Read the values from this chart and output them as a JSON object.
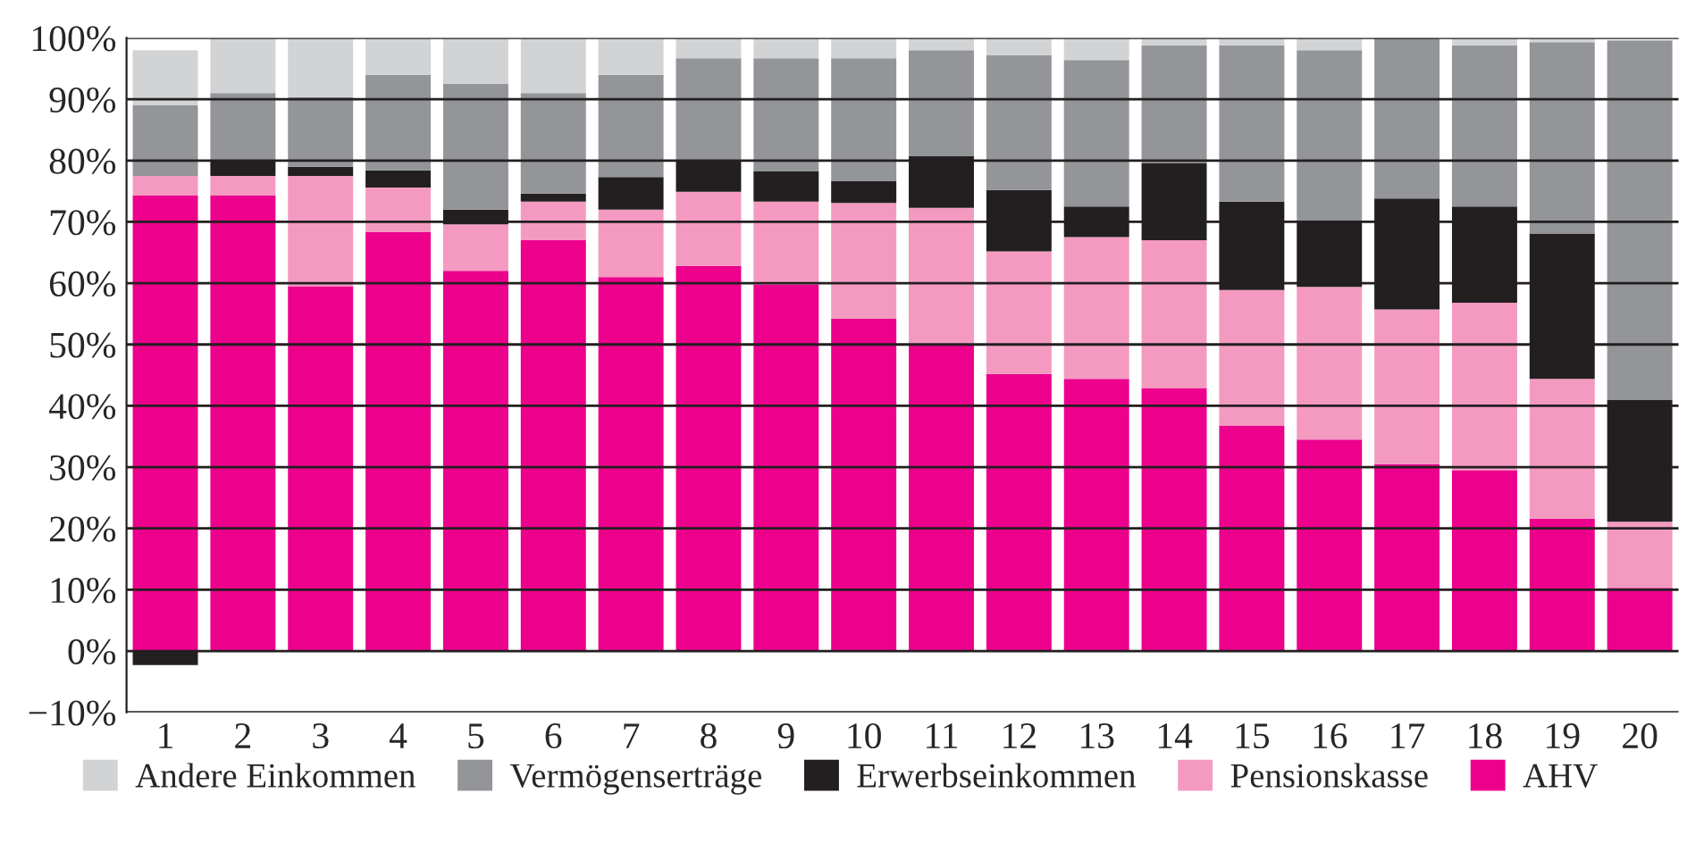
{
  "chart_data": {
    "type": "bar",
    "stacked": true,
    "categories": [
      "1",
      "2",
      "3",
      "4",
      "5",
      "6",
      "7",
      "8",
      "9",
      "10",
      "11",
      "12",
      "13",
      "14",
      "15",
      "16",
      "17",
      "18",
      "19",
      "20"
    ],
    "series": [
      {
        "name": "AHV",
        "color": "#ec008c",
        "values": [
          74.3,
          74.3,
          59.5,
          68.3,
          62,
          67,
          61,
          62.8,
          59.8,
          54.2,
          50.1,
          45.2,
          44.4,
          42.9,
          36.8,
          34.5,
          30.5,
          29.5,
          21.6,
          10.3
        ]
      },
      {
        "name": "Pensionskasse",
        "color": "#f49ac1",
        "values": [
          3.2,
          3.2,
          18,
          7.3,
          7.6,
          6.3,
          11,
          12.1,
          13.5,
          18.9,
          22.2,
          20,
          23.1,
          24.1,
          22.1,
          24.9,
          25.2,
          27.3,
          22.8,
          10.8
        ]
      },
      {
        "name": "Erwerbseinkommen",
        "color": "#231f20",
        "values": [
          -2.3,
          2.5,
          1.5,
          2.8,
          2.4,
          1.3,
          5.3,
          5.1,
          5,
          3.6,
          8.4,
          10,
          5,
          12.6,
          14.4,
          10.8,
          18.1,
          15.7,
          23.7,
          19.9
        ]
      },
      {
        "name": "Vermögenserträge",
        "color": "#939598",
        "values": [
          11.5,
          11,
          11.3,
          15.6,
          20.5,
          16.4,
          16.7,
          16.7,
          18.4,
          20,
          17.3,
          22,
          23.9,
          19.2,
          25.5,
          27.8,
          26.2,
          26.3,
          31.2,
          58.6
        ]
      },
      {
        "name": "Andere Einkommen",
        "color": "#d1d3d4",
        "values": [
          9,
          9,
          9.7,
          6,
          7.5,
          9,
          6,
          3.3,
          3.3,
          3.3,
          2,
          2.8,
          3.6,
          1.2,
          1.2,
          2,
          0,
          1.2,
          0.7,
          0
        ]
      }
    ],
    "ylim": [
      -10,
      100
    ],
    "yticks": [
      {
        "value": -10,
        "label": "−10%"
      },
      {
        "value": 0,
        "label": "0%"
      },
      {
        "value": 10,
        "label": "10%"
      },
      {
        "value": 20,
        "label": "20%"
      },
      {
        "value": 30,
        "label": "30%"
      },
      {
        "value": 40,
        "label": "40%"
      },
      {
        "value": 50,
        "label": "50%"
      },
      {
        "value": 60,
        "label": "60%"
      },
      {
        "value": 70,
        "label": "70%"
      },
      {
        "value": 80,
        "label": "80%"
      },
      {
        "value": 90,
        "label": "90%"
      },
      {
        "value": 100,
        "label": "100%"
      }
    ],
    "grid": "y",
    "legend": "bottom"
  }
}
